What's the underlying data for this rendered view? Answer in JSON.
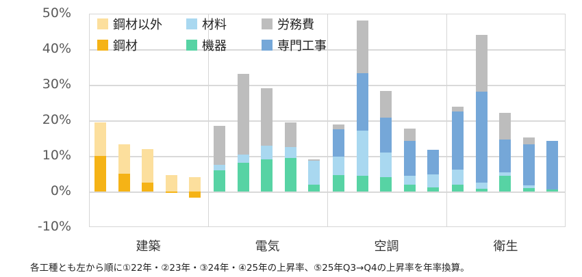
{
  "chart_data": {
    "type": "bar",
    "stacked": true,
    "title": "",
    "xlabel": "",
    "ylabel": "",
    "ylim": [
      -10,
      50
    ],
    "yticks": [
      "50%",
      "40%",
      "30%",
      "20%",
      "10%",
      "0%",
      "-10%"
    ],
    "grid": true,
    "legend_position": "top-left inside",
    "categories": [
      "建築",
      "電気",
      "空調",
      "衛生"
    ],
    "periods": [
      "①22年",
      "②23年",
      "③24年",
      "④25年",
      "⑤25年Q3→Q4年率換算"
    ],
    "colors": {
      "鋼材以外": "#FCDF9D",
      "鋼材": "#F5B316",
      "材料": "#A9D8F0",
      "機器": "#57D3A4",
      "労務費": "#BDBDBD",
      "専門工事": "#75A7D8"
    },
    "series_order_bottom_to_top": [
      "鋼材",
      "鋼材以外",
      "機器",
      "材料",
      "専門工事",
      "労務費"
    ],
    "groups": [
      {
        "category": "建築",
        "bars": [
          {
            "鋼材": 10.0,
            "鋼材以外": 9.4
          },
          {
            "鋼材": 5.0,
            "鋼材以外": 8.3
          },
          {
            "鋼材": 2.5,
            "鋼材以外": 9.4
          },
          {
            "鋼材": -0.4,
            "鋼材以外": 4.6
          },
          {
            "鋼材": -1.8,
            "鋼材以外": 4.1
          }
        ]
      },
      {
        "category": "電気",
        "bars": [
          {
            "機器": 6.0,
            "材料": 1.5,
            "労務費": 11.0
          },
          {
            "機器": 8.1,
            "材料": 2.3,
            "労務費": 22.7
          },
          {
            "機器": 9.0,
            "材料": 3.9,
            "労務費": 16.1
          },
          {
            "機器": 9.4,
            "材料": 3.1,
            "労務費": 6.9
          },
          {
            "機器": 2.0,
            "材料": 6.6,
            "労務費": 0.4
          }
        ]
      },
      {
        "category": "空調",
        "bars": [
          {
            "機器": 4.6,
            "材料": 5.2,
            "専門工事": 7.7,
            "労務費": 1.3
          },
          {
            "機器": 4.4,
            "材料": 12.7,
            "専門工事": 16.2,
            "労務費": 14.8
          },
          {
            "機器": 4.0,
            "材料": 7.0,
            "専門工事": 9.8,
            "労務費": 7.5
          },
          {
            "機器": 1.9,
            "材料": 2.5,
            "専門工事": 9.8,
            "労務費": 3.5
          },
          {
            "機器": 1.2,
            "材料": 3.6,
            "専門工事": 6.9,
            "労務費": 0
          }
        ]
      },
      {
        "category": "衛生",
        "bars": [
          {
            "機器": 1.9,
            "材料": 4.2,
            "専門工事": 16.4,
            "労務費": 1.3
          },
          {
            "機器": 0.8,
            "材料": 1.7,
            "専門工事": 25.6,
            "労務費": 15.9
          },
          {
            "機器": 4.4,
            "材料": 1.0,
            "専門工事": 9.2,
            "労務費": 7.5
          },
          {
            "機器": 0.9,
            "材料": 0.8,
            "専門工事": 11.6,
            "労務費": 1.9
          },
          {
            "機器": 0.6,
            "材料": 0,
            "専門工事": 13.6,
            "労務費": 0
          }
        ]
      }
    ],
    "annotations": [
      "各工種とも左から順に①22年・②23年・③24年・④25年の上昇率、⑤25年Q3→Q4の上昇率を年率換算。"
    ]
  },
  "legend": {
    "items": [
      {
        "label": "鋼材以外",
        "color": "#FCDF9D"
      },
      {
        "label": "材料",
        "color": "#A9D8F0"
      },
      {
        "label": "労務費",
        "color": "#BDBDBD"
      },
      {
        "label": "鋼材",
        "color": "#F5B316"
      },
      {
        "label": "機器",
        "color": "#57D3A4"
      },
      {
        "label": "専門工事",
        "color": "#75A7D8"
      }
    ]
  },
  "axis": {
    "y_ticks": [
      "50%",
      "40%",
      "30%",
      "20%",
      "10%",
      "0%",
      "-10%"
    ],
    "x_labels": [
      "建築",
      "電気",
      "空調",
      "衛生"
    ]
  },
  "footnote": "各工種とも左から順に①22年・②23年・③24年・④25年の上昇率、⑤25年Q3→Q4の上昇率を年率換算。"
}
